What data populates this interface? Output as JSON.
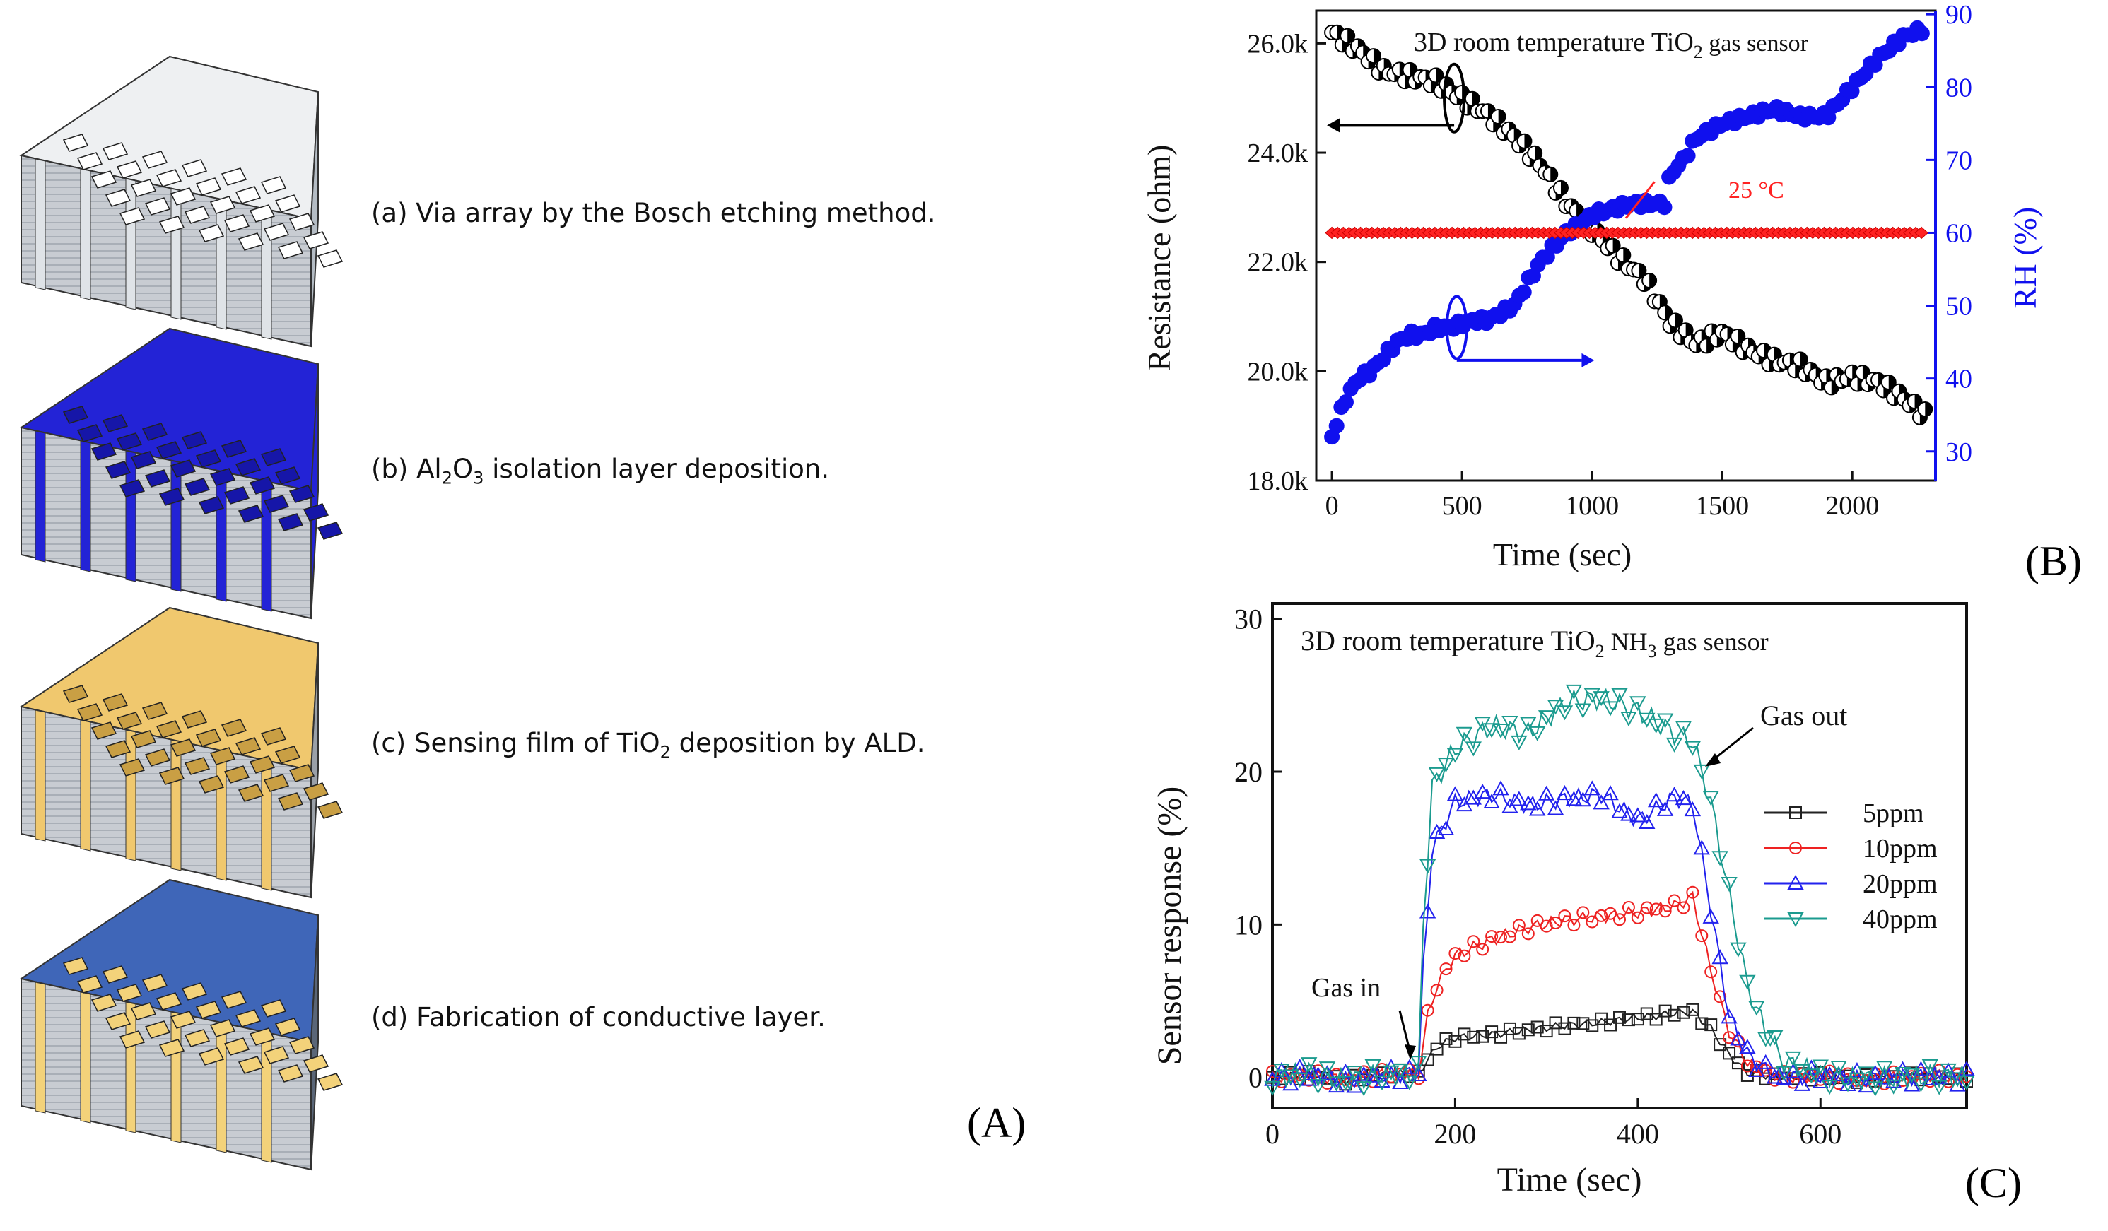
{
  "panel_a": {
    "letter": "(A)",
    "steps": [
      {
        "id": "a",
        "prefix": "(a) Via array by the Bosch etching method.",
        "sub": "",
        "suffix": ""
      },
      {
        "id": "b",
        "prefix": "(b) Al",
        "sub1": "2",
        "mid": "O",
        "sub2": "3",
        "suffix": " isolation layer deposition."
      },
      {
        "id": "c",
        "prefix": "(c) Sensing film of TiO",
        "sub1": "2",
        "suffix": " deposition by ALD."
      },
      {
        "id": "d",
        "prefix": "(d) Fabrication of  conductive layer.",
        "sub": "",
        "suffix": ""
      }
    ],
    "colors": {
      "via": "#b4bcc4",
      "alumina": "#2323d6",
      "tio2": "#f0c86e",
      "conductive": "#3f66b8"
    }
  },
  "panel_b": {
    "letter": "(B)",
    "title_pre": "3D room temperature TiO",
    "title_sub": "2",
    "title_post": "  gas sensor",
    "temp_label": "25 °C",
    "chart_data": {
      "type": "scatter",
      "xlabel": "Time (sec)",
      "ylabel_left": "Resistance (ohm)",
      "ylabel_right": "RH (%)",
      "xlim": [
        -60,
        2320
      ],
      "ylim_left": [
        18000,
        26600
      ],
      "ylim_right": [
        26,
        90.5
      ],
      "xticks": [
        "0",
        "500",
        "1000",
        "1500",
        "2000"
      ],
      "xtick_values": [
        0,
        500,
        1000,
        1500,
        2000
      ],
      "yticks_left": [
        "18.0k",
        "20.0k",
        "22.0k",
        "24.0k",
        "26.0k"
      ],
      "ytick_left_values": [
        18000,
        20000,
        22000,
        24000,
        26000
      ],
      "yticks_right": [
        "30",
        "40",
        "50",
        "60",
        "70",
        "80",
        "90"
      ],
      "ytick_right_values": [
        30,
        40,
        50,
        60,
        70,
        80,
        90
      ],
      "series": [
        {
          "name": "Resistance",
          "axis": "left",
          "color": "#000000",
          "x": [
            0,
            100,
            200,
            300,
            400,
            500,
            600,
            700,
            800,
            900,
            1000,
            1100,
            1200,
            1300,
            1400,
            1500,
            1600,
            1700,
            1800,
            1900,
            2000,
            2100,
            2200,
            2280
          ],
          "y": [
            26200,
            25900,
            25500,
            25400,
            25300,
            25000,
            24700,
            24300,
            23800,
            23100,
            22600,
            22100,
            21700,
            20900,
            20500,
            20700,
            20400,
            20200,
            20100,
            19800,
            19900,
            19800,
            19500,
            19200
          ]
        },
        {
          "name": "RH",
          "axis": "right",
          "color": "#1010ee",
          "x": [
            0,
            50,
            100,
            150,
            200,
            250,
            300,
            350,
            400,
            450,
            500,
            550,
            600,
            650,
            700,
            750,
            800,
            850,
            900,
            950,
            1000,
            1050,
            1100,
            1150,
            1200,
            1250,
            1280,
            1300,
            1350,
            1400,
            1500,
            1600,
            1700,
            1800,
            1900,
            2000,
            2100,
            2200,
            2280
          ],
          "y": [
            32,
            37,
            40,
            41,
            43,
            45,
            46,
            46,
            47,
            47,
            47.5,
            48,
            48,
            49,
            50,
            53,
            56,
            58,
            60,
            61,
            62.5,
            63,
            63.5,
            64,
            64,
            64,
            64,
            68,
            70,
            73,
            75,
            76,
            77,
            76,
            76,
            80,
            84,
            87,
            88
          ]
        },
        {
          "name": "Temperature 25 °C",
          "axis": "right",
          "color": "#ff2222",
          "x": [
            0,
            100,
            200,
            300,
            400,
            500,
            600,
            700,
            800,
            900,
            1000,
            1100,
            1200,
            1300,
            1400,
            1500,
            1600,
            1700,
            1800,
            1900,
            2000,
            2100,
            2200,
            2280
          ],
          "y": [
            60,
            60,
            60,
            60,
            60,
            60,
            60,
            60,
            60,
            60,
            60,
            60,
            60,
            60,
            60,
            60,
            60,
            60,
            60,
            60,
            60,
            60,
            60,
            60
          ]
        }
      ]
    }
  },
  "panel_c": {
    "letter": "(C)",
    "title_pre": "3D room temperature TiO",
    "title_sub1": "2",
    "title_mid": " NH",
    "title_sub2": "3",
    "title_post": " gas sensor",
    "gas_in": "Gas in",
    "gas_out": "Gas out",
    "chart_data": {
      "type": "line",
      "xlabel": "Time (sec)",
      "ylabel": "Sensor response (%)",
      "xlim": [
        0,
        760
      ],
      "ylim": [
        -2,
        31
      ],
      "xticks": [
        "0",
        "200",
        "400",
        "600"
      ],
      "xtick_values": [
        0,
        200,
        400,
        600
      ],
      "yticks": [
        "0",
        "10",
        "20",
        "30"
      ],
      "ytick_values": [
        0,
        10,
        20,
        30
      ],
      "legend": "right",
      "series": [
        {
          "name": "5ppm",
          "color": "#222222",
          "marker": "square",
          "x": [
            0,
            40,
            80,
            120,
            160,
            180,
            200,
            240,
            280,
            320,
            360,
            400,
            440,
            460,
            480,
            500,
            520,
            560,
            600,
            640,
            680,
            720,
            760
          ],
          "y": [
            0,
            0.2,
            -0.2,
            0.2,
            0.3,
            2,
            2.6,
            2.8,
            3.1,
            3.4,
            3.6,
            3.9,
            4.2,
            4.3,
            3.2,
            1.5,
            0.3,
            0,
            0.1,
            -0.1,
            0,
            0.1,
            0
          ]
        },
        {
          "name": "10ppm",
          "color": "#ee2222",
          "marker": "circle",
          "x": [
            0,
            40,
            80,
            120,
            160,
            170,
            180,
            200,
            240,
            280,
            320,
            360,
            400,
            440,
            460,
            480,
            500,
            520,
            540,
            560,
            600,
            640,
            680,
            720,
            760
          ],
          "y": [
            0,
            0.1,
            -0.1,
            0.2,
            0.3,
            4,
            6,
            8,
            9,
            9.8,
            10.3,
            10.5,
            10.8,
            11.2,
            11.8,
            7,
            3,
            1,
            0.3,
            0,
            0.1,
            -0.1,
            0,
            0.1,
            0
          ]
        },
        {
          "name": "20ppm",
          "color": "#2222ee",
          "marker": "triangle-up",
          "x": [
            0,
            40,
            80,
            120,
            160,
            165,
            175,
            200,
            240,
            280,
            320,
            360,
            400,
            440,
            460,
            480,
            500,
            520,
            540,
            560,
            600,
            640,
            680,
            720,
            760
          ],
          "y": [
            0,
            0.2,
            -0.2,
            0.1,
            0.3,
            7,
            15,
            18,
            18.5,
            17.8,
            18.2,
            18.5,
            16.8,
            18.3,
            17.9,
            11,
            4,
            1.5,
            0.5,
            0,
            0.1,
            -0.1,
            0,
            0.1,
            0
          ]
        },
        {
          "name": "40ppm",
          "color": "#1b9b8f",
          "marker": "triangle-down",
          "x": [
            0,
            40,
            80,
            120,
            160,
            165,
            175,
            200,
            240,
            280,
            320,
            360,
            400,
            440,
            460,
            480,
            500,
            520,
            540,
            560,
            600,
            640,
            680,
            720,
            760
          ],
          "y": [
            0,
            0.3,
            -0.2,
            0.2,
            0.3,
            10,
            19,
            21.5,
            23,
            22.5,
            24.5,
            24.8,
            24,
            22.5,
            22,
            18,
            12,
            6,
            3,
            1,
            0.2,
            -0.1,
            0,
            0.1,
            0
          ]
        }
      ]
    }
  }
}
